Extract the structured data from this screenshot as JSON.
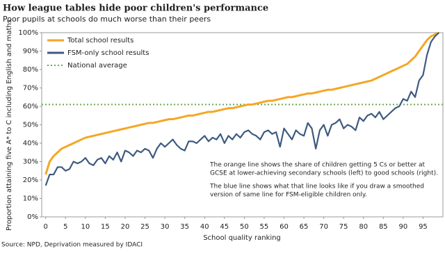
{
  "chart_data": {
    "type": "line",
    "title": "How league tables hide poor children's performance",
    "subtitle": "Poor pupils at schools do much worse than their peers",
    "x_label": "School quality ranking",
    "y_label": "Proportion attaining five A* to C including English and maths",
    "source": "Source: NPD, Deprivation measured by IDACI",
    "annotation": [
      "The orange line shows the share of children getting 5 Cs or better at",
      "GCSE at lower-achieving secondary schools (left) to good schools (right).",
      "The blue line shows what that line looks like if you draw a smoothed",
      "version of same line for FSM-eligible children only."
    ],
    "x": [
      0,
      1,
      2,
      3,
      4,
      5,
      6,
      7,
      8,
      9,
      10,
      11,
      12,
      13,
      14,
      15,
      16,
      17,
      18,
      19,
      20,
      21,
      22,
      23,
      24,
      25,
      26,
      27,
      28,
      29,
      30,
      31,
      32,
      33,
      34,
      35,
      36,
      37,
      38,
      39,
      40,
      41,
      42,
      43,
      44,
      45,
      46,
      47,
      48,
      49,
      50,
      51,
      52,
      53,
      54,
      55,
      56,
      57,
      58,
      59,
      60,
      61,
      62,
      63,
      64,
      65,
      66,
      67,
      68,
      69,
      70,
      71,
      72,
      73,
      74,
      75,
      76,
      77,
      78,
      79,
      80,
      81,
      82,
      83,
      84,
      85,
      86,
      87,
      88,
      89,
      90,
      91,
      92,
      93,
      94,
      95,
      96,
      97,
      98,
      99
    ],
    "series": [
      {
        "name": "Total school results",
        "color": "#f5a623",
        "values": [
          23,
          30,
          33,
          35,
          37,
          38,
          39,
          40,
          41,
          42,
          43,
          43.5,
          44,
          44.5,
          45,
          45.5,
          46,
          46.5,
          47,
          47.5,
          48,
          48.5,
          49,
          49.5,
          50,
          50.5,
          51,
          51,
          51.5,
          52,
          52.5,
          53,
          53,
          53.5,
          54,
          54.5,
          55,
          55,
          55.5,
          56,
          56.5,
          57,
          57,
          57.5,
          58,
          58.5,
          59,
          59,
          59.5,
          60,
          60.5,
          61,
          61,
          61.5,
          62,
          62.5,
          63,
          63,
          63.5,
          64,
          64.5,
          65,
          65,
          65.5,
          66,
          66.5,
          67,
          67,
          67.5,
          68,
          68.5,
          69,
          69,
          69.5,
          70,
          70.5,
          71,
          71.5,
          72,
          72.5,
          73,
          73.5,
          74,
          75,
          76,
          77,
          78,
          79,
          80,
          81,
          82,
          83,
          85,
          87,
          90,
          93,
          96,
          98,
          99,
          100
        ]
      },
      {
        "name": "FSM-only school results",
        "color": "#3d5a80",
        "values": [
          17,
          23,
          23,
          27,
          27,
          25,
          26,
          30,
          29,
          30,
          32,
          29,
          28,
          31,
          32,
          29,
          33,
          31,
          35,
          30,
          36,
          35,
          33,
          36,
          35,
          37,
          36,
          32,
          37,
          40,
          38,
          40,
          42,
          39,
          37,
          36,
          41,
          41,
          40,
          42,
          44,
          41,
          43,
          42,
          45,
          40,
          44,
          42,
          45,
          43,
          46,
          47,
          45,
          44,
          42,
          46,
          47,
          45,
          46,
          38,
          48,
          45,
          42,
          47,
          45,
          44,
          51,
          48,
          37,
          47,
          50,
          44,
          50,
          51,
          53,
          48,
          50,
          49,
          47,
          54,
          52,
          55,
          56,
          54,
          57,
          53,
          55,
          57,
          59,
          60,
          64,
          63,
          68,
          65,
          74,
          77,
          88,
          95,
          98,
          100
        ]
      }
    ],
    "reference_lines": [
      {
        "name": "National average",
        "value": 61,
        "color": "#6aa84f"
      }
    ],
    "xlim": [
      -1,
      100
    ],
    "ylim": [
      0,
      100
    ],
    "xticks": [
      0,
      5,
      10,
      15,
      20,
      25,
      30,
      35,
      40,
      45,
      50,
      55,
      60,
      65,
      70,
      75,
      80,
      85,
      90,
      95
    ],
    "yticks": [
      {
        "value": 0,
        "label": "0%"
      },
      {
        "value": 10,
        "label": "10%"
      },
      {
        "value": 20,
        "label": "20%"
      },
      {
        "value": 30,
        "label": "30%"
      },
      {
        "value": 40,
        "label": "40%"
      },
      {
        "value": 50,
        "label": "50%"
      },
      {
        "value": 60,
        "label": "60%"
      },
      {
        "value": 70,
        "label": "70%"
      },
      {
        "value": 80,
        "label": "80%"
      },
      {
        "value": 90,
        "label": "90%"
      },
      {
        "value": 100,
        "label": "100%"
      }
    ]
  }
}
